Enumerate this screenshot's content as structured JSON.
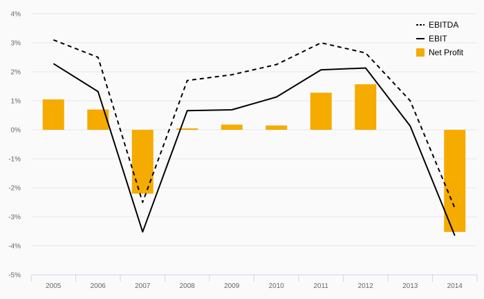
{
  "chart_data": {
    "type": "bar",
    "categories": [
      "2005",
      "2006",
      "2007",
      "2008",
      "2009",
      "2010",
      "2011",
      "2012",
      "2013",
      "2014"
    ],
    "y_tick_labels": [
      "4%",
      "3%",
      "2%",
      "1%",
      "0%",
      "-1%",
      "-2%",
      "-3%",
      "-4%",
      "-5%"
    ],
    "ylim": [
      -5,
      4
    ],
    "grid": true,
    "legend_position": "top-right",
    "series": [
      {
        "name": "EBITDA",
        "type": "line",
        "style": "dashed",
        "color": "#000000",
        "values": [
          3.1,
          2.5,
          -2.5,
          1.7,
          1.9,
          2.25,
          3.0,
          2.65,
          1.0,
          -2.7
        ]
      },
      {
        "name": "EBIT",
        "type": "line",
        "style": "solid",
        "color": "#000000",
        "values": [
          2.28,
          1.32,
          -3.52,
          0.66,
          0.69,
          1.13,
          2.07,
          2.13,
          0.13,
          -3.65
        ]
      },
      {
        "name": "Net Profit",
        "type": "bar",
        "color": "#f5ab00",
        "values": [
          1.05,
          0.7,
          -2.2,
          0.05,
          0.18,
          0.15,
          1.28,
          1.57,
          0.0,
          -3.52
        ]
      }
    ]
  }
}
